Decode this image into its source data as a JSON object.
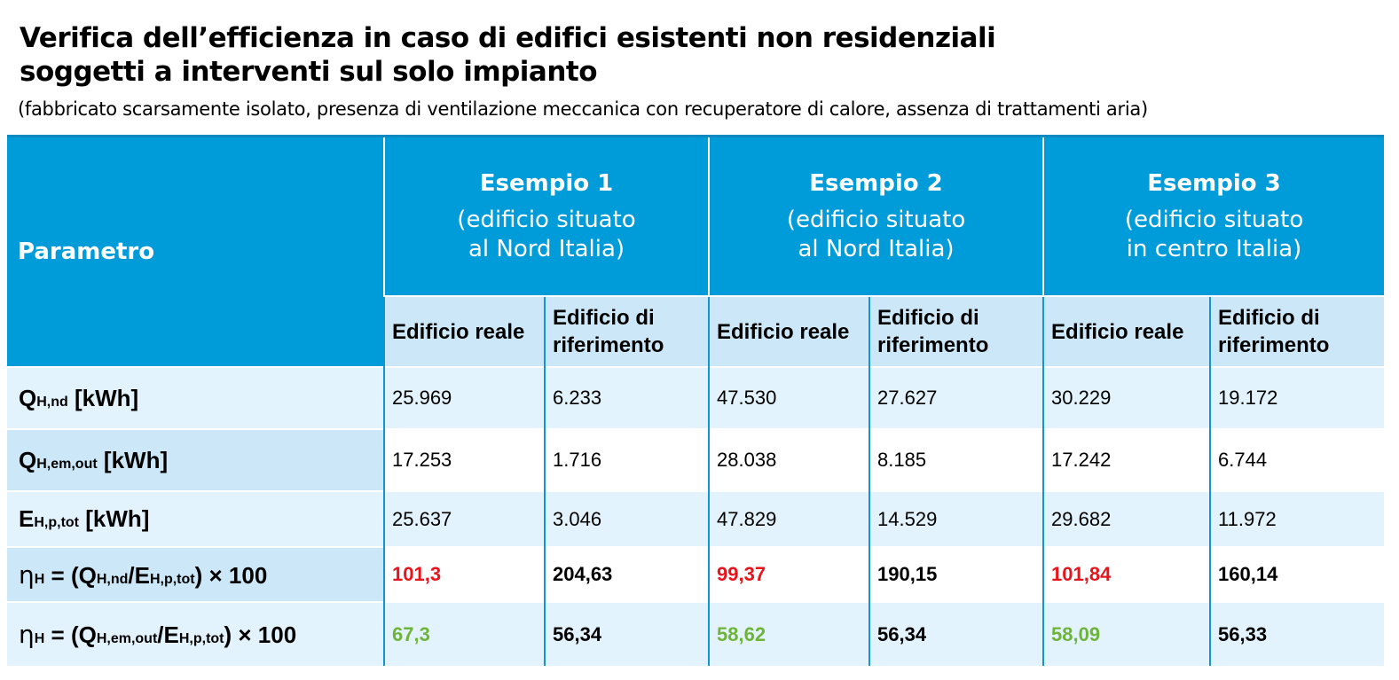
{
  "title_line1": "Verifica dell’efficienza in caso di edifici esistenti non residenziali",
  "title_line2": "soggetti a interventi sul solo impianto",
  "subtitle": "(fabbricato scarsamente isolato, presenza di ventilazione meccanica con recuperatore di calore, assenza di trattamenti aria)",
  "table": {
    "param_header": "Parametro",
    "examples": [
      {
        "title": "Esempio 1",
        "sub1": "(edificio situato",
        "sub2": "al Nord Italia)"
      },
      {
        "title": "Esempio 2",
        "sub1": "(edificio situato",
        "sub2": "al Nord Italia)"
      },
      {
        "title": "Esempio 3",
        "sub1": "(edificio situato",
        "sub2": "in centro Italia)"
      }
    ],
    "sub_real": "Edificio reale",
    "sub_ref1": "Edificio di",
    "sub_ref2": "riferimento",
    "rows": [
      {
        "label_main": "Q",
        "label_sub": "H,nd",
        "label_unit": " [kWh]",
        "values": [
          "25.969",
          "6.233",
          "47.530",
          "27.627",
          "30.229",
          "19.172"
        ]
      },
      {
        "label_main": "Q",
        "label_sub": "H,em,out",
        "label_unit": " [kWh]",
        "values": [
          "17.253",
          "1.716",
          "28.038",
          "8.185",
          "17.242",
          "6.744"
        ]
      },
      {
        "label_main": "E",
        "label_sub": "H,p,tot",
        "label_unit": " [kWh]",
        "values": [
          "25.637",
          "3.046",
          "47.829",
          "14.529",
          "29.682",
          "11.972"
        ]
      },
      {
        "label_eta": "η",
        "label_eta_sub": "H",
        "label_mid": " = (Q",
        "label_s1": "H,nd",
        "label_slash": "/E",
        "label_s2": "H,p,tot",
        "label_end": ") × 100",
        "values": [
          "101,3",
          "204,63",
          "99,37",
          "190,15",
          "101,84",
          "160,14"
        ]
      },
      {
        "label_eta": "η",
        "label_eta_sub": "H",
        "label_mid": " = (Q",
        "label_s1": "H,em,out",
        "label_slash": "/E",
        "label_s2": "H,p,tot",
        "label_end": ") × 100",
        "values": [
          "67,3",
          "56,34",
          "58,62",
          "56,34",
          "58,09",
          "56,33"
        ]
      }
    ]
  },
  "colors": {
    "header_blue": "#009bd9",
    "subheader_light": "#cce8f8",
    "row_light": "#e3f3fd",
    "fail_red": "#e8141b",
    "pass_green": "#6fb43a"
  }
}
